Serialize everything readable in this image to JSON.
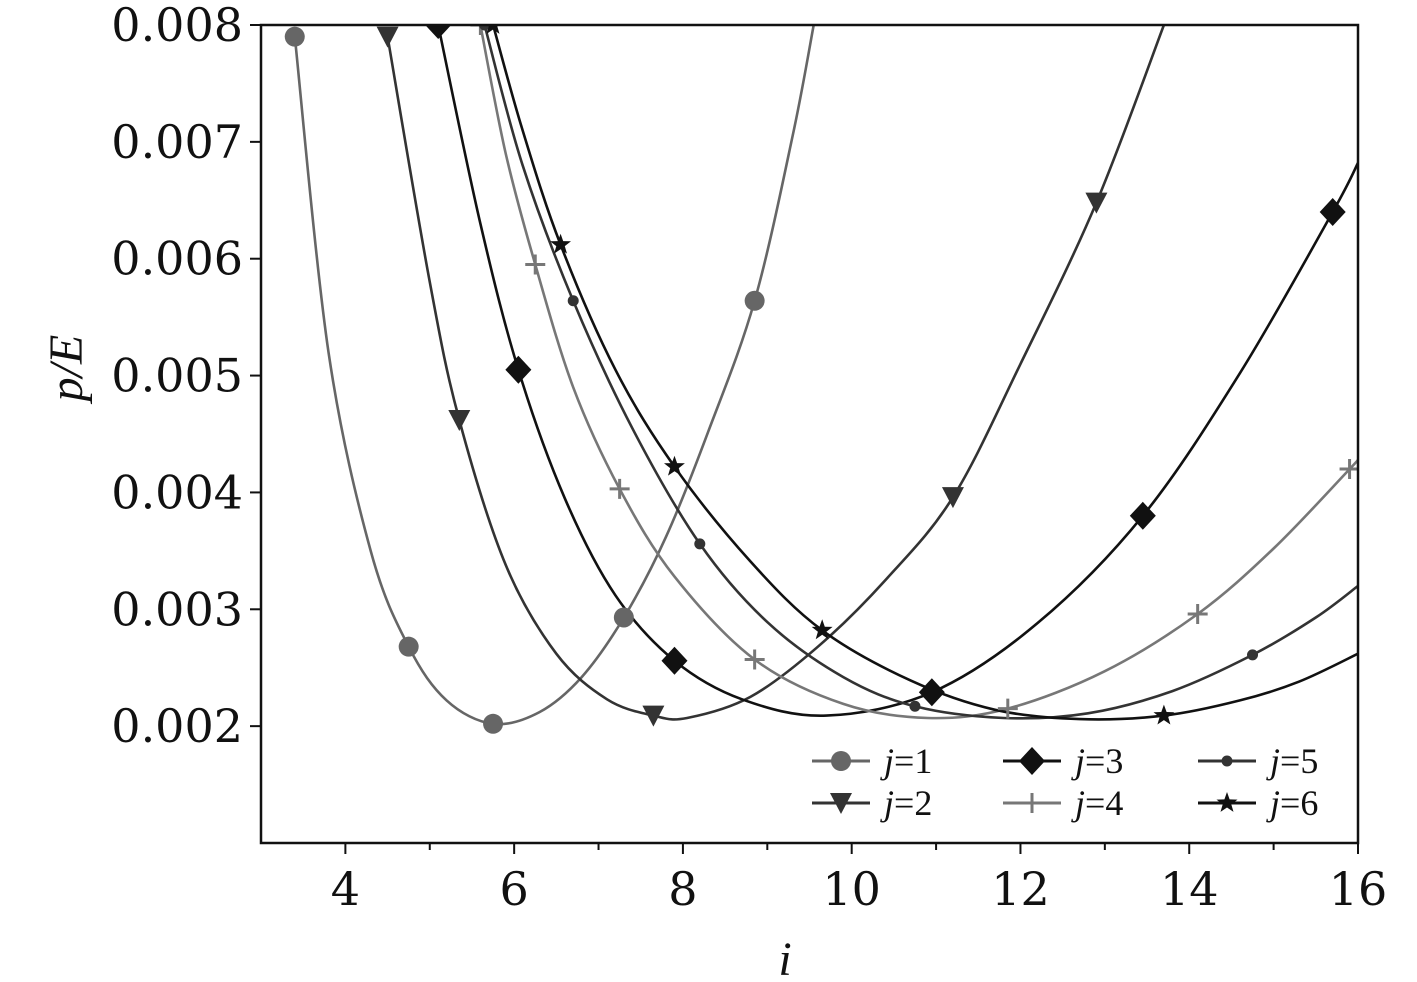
{
  "chart_data": {
    "type": "line",
    "xlabel": "i",
    "ylabel": "p/E",
    "xlim": [
      3,
      16
    ],
    "ylim": [
      0.001,
      0.008
    ],
    "xticks": [
      "4",
      "6",
      "8",
      "10",
      "12",
      "14",
      "16"
    ],
    "yticks": [
      "0.002",
      "0.003",
      "0.004",
      "0.005",
      "0.006",
      "0.007",
      "0.008"
    ],
    "grid": false,
    "legend_position": "bottom-right",
    "series": [
      {
        "name": "j=1",
        "color": "#666666",
        "marker": "circle",
        "x": [
          3.4,
          4.75,
          5.75,
          7.3,
          8.85
        ],
        "y": [
          0.0079,
          0.00268,
          0.00202,
          0.00293,
          0.00564
        ],
        "curve_x": [
          3.4,
          3.8,
          4.3,
          4.75,
          5.2,
          5.75,
          6.3,
          6.8,
          7.3,
          7.8,
          8.3,
          8.85,
          9.3,
          9.55
        ],
        "curve_y": [
          0.0079,
          0.0052,
          0.0035,
          0.00268,
          0.00222,
          0.00202,
          0.00212,
          0.00242,
          0.00293,
          0.00362,
          0.00452,
          0.00564,
          0.00705,
          0.008
        ]
      },
      {
        "name": "j=2",
        "color": "#333333",
        "marker": "triangle-down",
        "x": [
          4.5,
          5.35,
          7.65,
          11.2,
          12.9
        ],
        "y": [
          0.0079,
          0.00462,
          0.00209,
          0.00396,
          0.00648
        ],
        "curve_x": [
          4.5,
          5.0,
          5.35,
          5.9,
          6.5,
          7.1,
          7.65,
          8.05,
          8.8,
          9.6,
          10.4,
          11.2,
          12.0,
          12.9,
          13.7
        ],
        "curve_y": [
          0.0079,
          0.0058,
          0.00462,
          0.00338,
          0.00262,
          0.00223,
          0.00209,
          0.00207,
          0.00225,
          0.00268,
          0.00325,
          0.00396,
          0.0051,
          0.00648,
          0.008
        ]
      },
      {
        "name": "j=3",
        "color": "#111111",
        "marker": "diamond",
        "x": [
          5.1,
          6.05,
          7.9,
          10.95,
          13.45,
          15.7
        ],
        "y": [
          0.008,
          0.00505,
          0.00256,
          0.00229,
          0.0038,
          0.0064
        ],
        "curve_x": [
          5.1,
          5.6,
          6.05,
          6.6,
          7.2,
          7.9,
          8.7,
          9.7,
          10.95,
          12.2,
          13.45,
          14.6,
          15.7,
          16.0
        ],
        "curve_y": [
          0.008,
          0.0063,
          0.00505,
          0.00395,
          0.00312,
          0.00256,
          0.00223,
          0.00209,
          0.00229,
          0.00288,
          0.0038,
          0.00502,
          0.0064,
          0.00682
        ]
      },
      {
        "name": "j=4",
        "color": "#777777",
        "marker": "plus",
        "x": [
          5.6,
          6.25,
          7.25,
          8.85,
          11.85,
          14.1,
          15.9
        ],
        "y": [
          0.008,
          0.00595,
          0.00403,
          0.00257,
          0.00215,
          0.00296,
          0.0042
        ],
        "curve_x": [
          5.6,
          5.9,
          6.25,
          6.7,
          7.25,
          7.9,
          8.85,
          9.9,
          10.9,
          11.85,
          13.0,
          14.1,
          15.0,
          15.9,
          16.0
        ],
        "curve_y": [
          0.008,
          0.0069,
          0.00595,
          0.0049,
          0.00403,
          0.00328,
          0.00257,
          0.00219,
          0.00207,
          0.00215,
          0.00247,
          0.00296,
          0.00352,
          0.0042,
          0.00428
        ]
      },
      {
        "name": "j=5",
        "color": "#333333",
        "marker": "dot",
        "x": [
          5.65,
          6.7,
          8.2,
          10.75,
          14.75
        ],
        "y": [
          0.008,
          0.00564,
          0.00356,
          0.00217,
          0.00261
        ],
        "curve_x": [
          5.65,
          6.1,
          6.7,
          7.4,
          8.2,
          9.0,
          9.9,
          10.75,
          11.8,
          12.8,
          13.8,
          14.75,
          15.5,
          16.0
        ],
        "curve_y": [
          0.008,
          0.0068,
          0.00564,
          0.00455,
          0.00356,
          0.00289,
          0.00242,
          0.00217,
          0.00207,
          0.00211,
          0.0023,
          0.00261,
          0.00293,
          0.0032
        ]
      },
      {
        "name": "j=6",
        "color": "#111111",
        "marker": "star",
        "x": [
          5.75,
          6.55,
          7.9,
          9.65,
          13.7
        ],
        "y": [
          0.008,
          0.00612,
          0.00422,
          0.00282,
          0.00209
        ],
        "curve_x": [
          5.75,
          6.1,
          6.55,
          7.2,
          7.9,
          8.8,
          9.65,
          10.7,
          11.7,
          12.7,
          13.7,
          14.6,
          15.3,
          16.0
        ],
        "curve_y": [
          0.008,
          0.0071,
          0.00612,
          0.00505,
          0.00422,
          0.00341,
          0.00282,
          0.00239,
          0.00214,
          0.00206,
          0.00209,
          0.00222,
          0.00238,
          0.00262
        ]
      }
    ]
  }
}
